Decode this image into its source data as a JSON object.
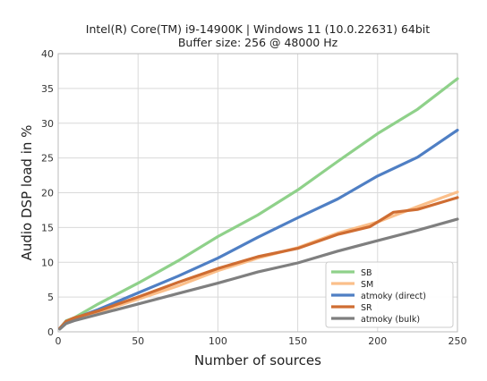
{
  "chart_data": {
    "type": "line",
    "title": "Intel(R) Core(TM) i9-14900K |  Windows 11  (10.0.22631) 64bit",
    "subtitle": "Buffer size: 256 @ 48000 Hz",
    "xlabel": "Number of sources",
    "ylabel": "Audio DSP load in %",
    "xlim": [
      0,
      250
    ],
    "ylim": [
      0,
      40
    ],
    "xticks": [
      "0",
      "50",
      "100",
      "150",
      "200",
      "250"
    ],
    "yticks": [
      "0",
      "5",
      "10",
      "15",
      "20",
      "25",
      "30",
      "35",
      "40"
    ],
    "grid": true,
    "legend_position": "bottom-right",
    "series": [
      {
        "name": "SB",
        "color": "#8fd18a",
        "x": [
          1,
          5,
          10,
          25,
          50,
          75,
          100,
          125,
          150,
          175,
          200,
          225,
          250
        ],
        "y": [
          0.5,
          1.6,
          2.0,
          4.0,
          7.0,
          10.2,
          13.7,
          16.8,
          20.4,
          24.5,
          28.5,
          32.0,
          36.4
        ]
      },
      {
        "name": "SM",
        "color": "#fbbf8a",
        "x": [
          1,
          5,
          10,
          25,
          50,
          75,
          100,
          125,
          150,
          175,
          200,
          225,
          250
        ],
        "y": [
          0.5,
          1.5,
          1.8,
          2.8,
          4.7,
          6.6,
          8.8,
          10.6,
          12.1,
          14.2,
          15.8,
          18.0,
          20.1
        ]
      },
      {
        "name": "atmoky (direct)",
        "color": "#4f7fc4",
        "x": [
          1,
          5,
          10,
          25,
          50,
          75,
          100,
          125,
          150,
          175,
          200,
          225,
          250
        ],
        "y": [
          0.5,
          1.5,
          1.9,
          3.2,
          5.6,
          8.0,
          10.6,
          13.6,
          16.4,
          19.1,
          22.4,
          25.1,
          29.0
        ]
      },
      {
        "name": "SR",
        "color": "#cf6d32",
        "x": [
          1,
          5,
          10,
          25,
          50,
          75,
          100,
          125,
          150,
          175,
          195,
          200,
          210,
          225,
          250
        ],
        "y": [
          0.5,
          1.5,
          2.0,
          3.0,
          5.0,
          7.1,
          9.1,
          10.8,
          12.0,
          14.0,
          15.1,
          15.8,
          17.2,
          17.6,
          19.3
        ]
      },
      {
        "name": "atmoky (bulk)",
        "color": "#7f7f7f",
        "x": [
          1,
          5,
          10,
          25,
          50,
          75,
          100,
          125,
          150,
          175,
          200,
          225,
          250
        ],
        "y": [
          0.4,
          1.2,
          1.6,
          2.5,
          4.0,
          5.5,
          7.0,
          8.6,
          9.9,
          11.6,
          13.1,
          14.6,
          16.2
        ]
      }
    ]
  }
}
